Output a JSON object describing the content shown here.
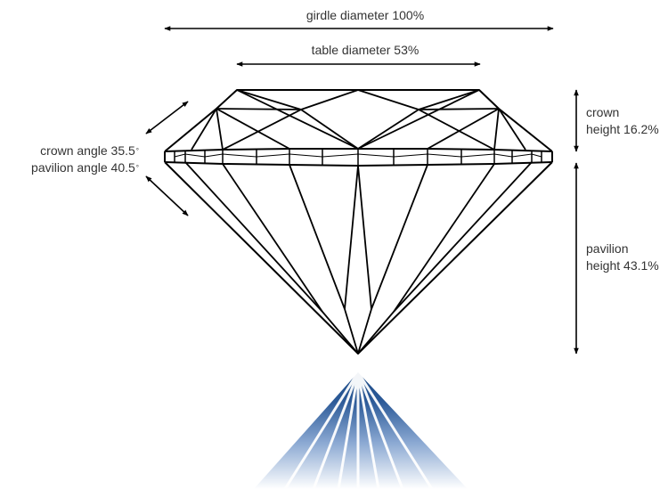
{
  "labels": {
    "girdle": "girdle diameter 100%",
    "table": "table diameter 53%",
    "crown_height": [
      "crown",
      "height 16.2%"
    ],
    "pavilion_height": [
      "pavilion",
      "height 43.1%"
    ],
    "crown_angle": "crown angle 35.5",
    "pavilion_angle": "pavilion angle 40.5",
    "degree_mark": "°"
  },
  "colors": {
    "line": "#000000",
    "text": "#333333",
    "light_dark": "#1c4a85",
    "light_mid": "#6f93c4",
    "light_fade": "#ffffff"
  }
}
